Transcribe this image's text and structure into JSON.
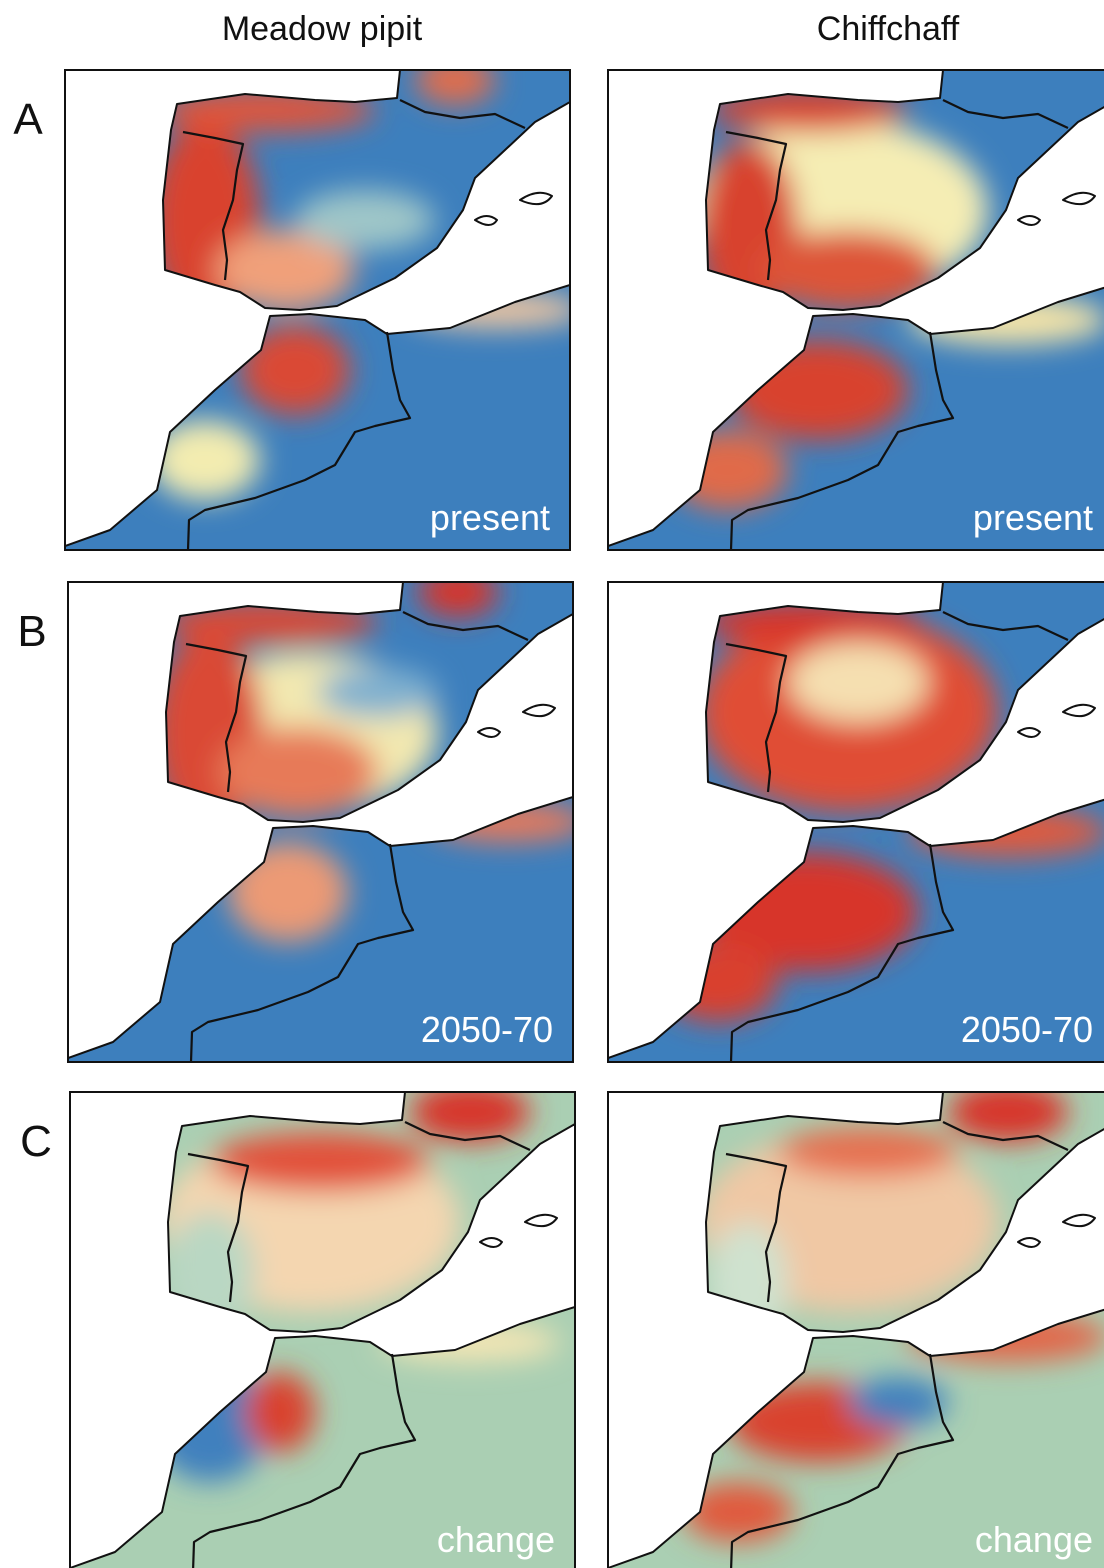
{
  "columns": [
    {
      "title": "Meadow pipit"
    },
    {
      "title": "Chiffchaff"
    }
  ],
  "rows": [
    {
      "label": "A",
      "caption": "present"
    },
    {
      "label": "B",
      "caption": "2050-70"
    },
    {
      "label": "C",
      "caption": "change"
    }
  ]
}
